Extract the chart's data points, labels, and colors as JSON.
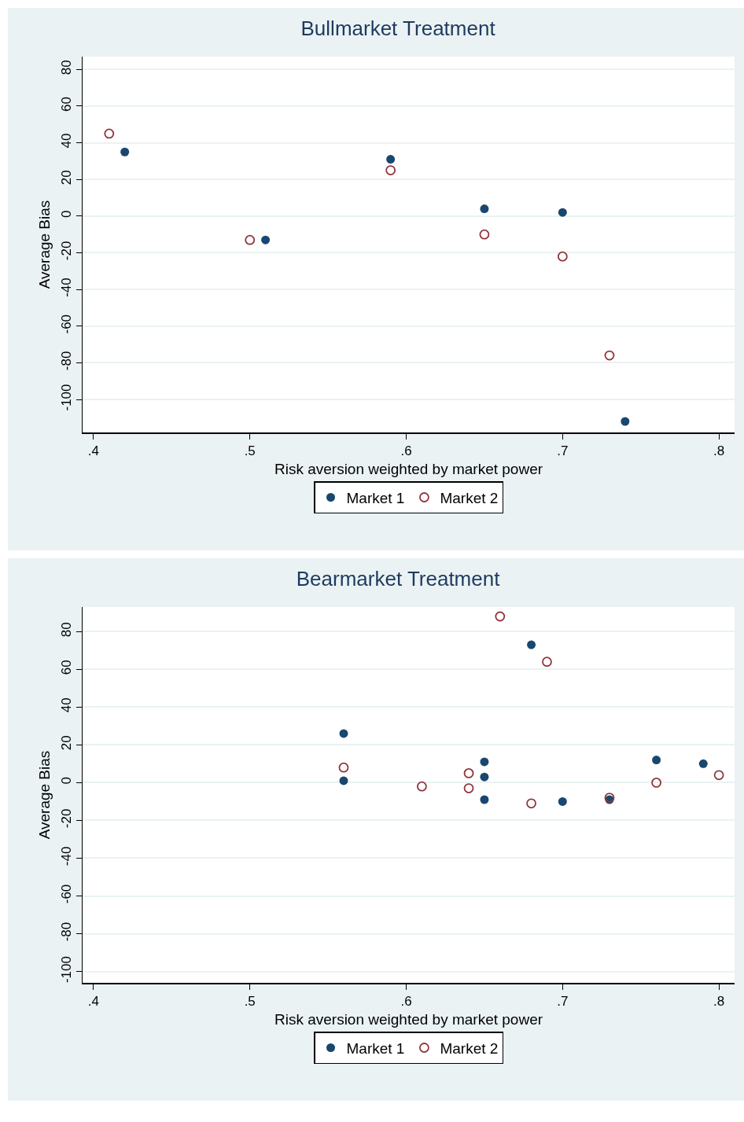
{
  "chart_data": [
    {
      "type": "scatter",
      "title": "Bullmarket Treatment",
      "xlabel": "Risk aversion weighted by market power",
      "ylabel": "Average Bias",
      "xlim": [
        0.393,
        0.81
      ],
      "ylim": [
        -118,
        87
      ],
      "xticks": [
        {
          "value": 0.4,
          "label": ".4"
        },
        {
          "value": 0.5,
          "label": ".5"
        },
        {
          "value": 0.6,
          "label": ".6"
        },
        {
          "value": 0.7,
          "label": ".7"
        },
        {
          "value": 0.8,
          "label": ".8"
        }
      ],
      "yticks": [
        -100,
        -80,
        -60,
        -40,
        -20,
        0,
        20,
        40,
        60,
        80
      ],
      "grid": "y",
      "legend": "bottom",
      "marker": "circle",
      "series": [
        {
          "name": "Market 1",
          "color": "#1a476f",
          "x": [
            0.42,
            0.51,
            0.59,
            0.65,
            0.7,
            0.74
          ],
          "values": [
            35,
            -13,
            31,
            4,
            2,
            -112
          ]
        },
        {
          "name": "Market 2",
          "color": "#90353b",
          "x": [
            0.41,
            0.5,
            0.59,
            0.65,
            0.7,
            0.73
          ],
          "values": [
            45,
            -13,
            25,
            -10,
            -22,
            -76
          ]
        }
      ]
    },
    {
      "type": "scatter",
      "title": "Bearmarket Treatment",
      "xlabel": "Risk aversion weighted by market power",
      "ylabel": "Average Bias",
      "xlim": [
        0.393,
        0.81
      ],
      "ylim": [
        -106,
        93
      ],
      "xticks": [
        {
          "value": 0.4,
          "label": ".4"
        },
        {
          "value": 0.5,
          "label": ".5"
        },
        {
          "value": 0.6,
          "label": ".6"
        },
        {
          "value": 0.7,
          "label": ".7"
        },
        {
          "value": 0.8,
          "label": ".8"
        }
      ],
      "yticks": [
        -100,
        -80,
        -60,
        -40,
        -20,
        0,
        20,
        40,
        60,
        80
      ],
      "grid": "y",
      "legend": "bottom",
      "marker": "circle",
      "series": [
        {
          "name": "Market 1",
          "color": "#1a476f",
          "x": [
            0.56,
            0.56,
            0.65,
            0.65,
            0.65,
            0.68,
            0.7,
            0.73,
            0.76,
            0.79
          ],
          "values": [
            26,
            1,
            11,
            3,
            -9,
            73,
            -10,
            -9,
            12,
            10
          ]
        },
        {
          "name": "Market 2",
          "color": "#90353b",
          "x": [
            0.56,
            0.61,
            0.64,
            0.64,
            0.66,
            0.68,
            0.69,
            0.73,
            0.76,
            0.8
          ],
          "values": [
            8,
            -2,
            5,
            -3,
            88,
            -11,
            64,
            -8,
            0,
            4
          ]
        }
      ]
    }
  ]
}
